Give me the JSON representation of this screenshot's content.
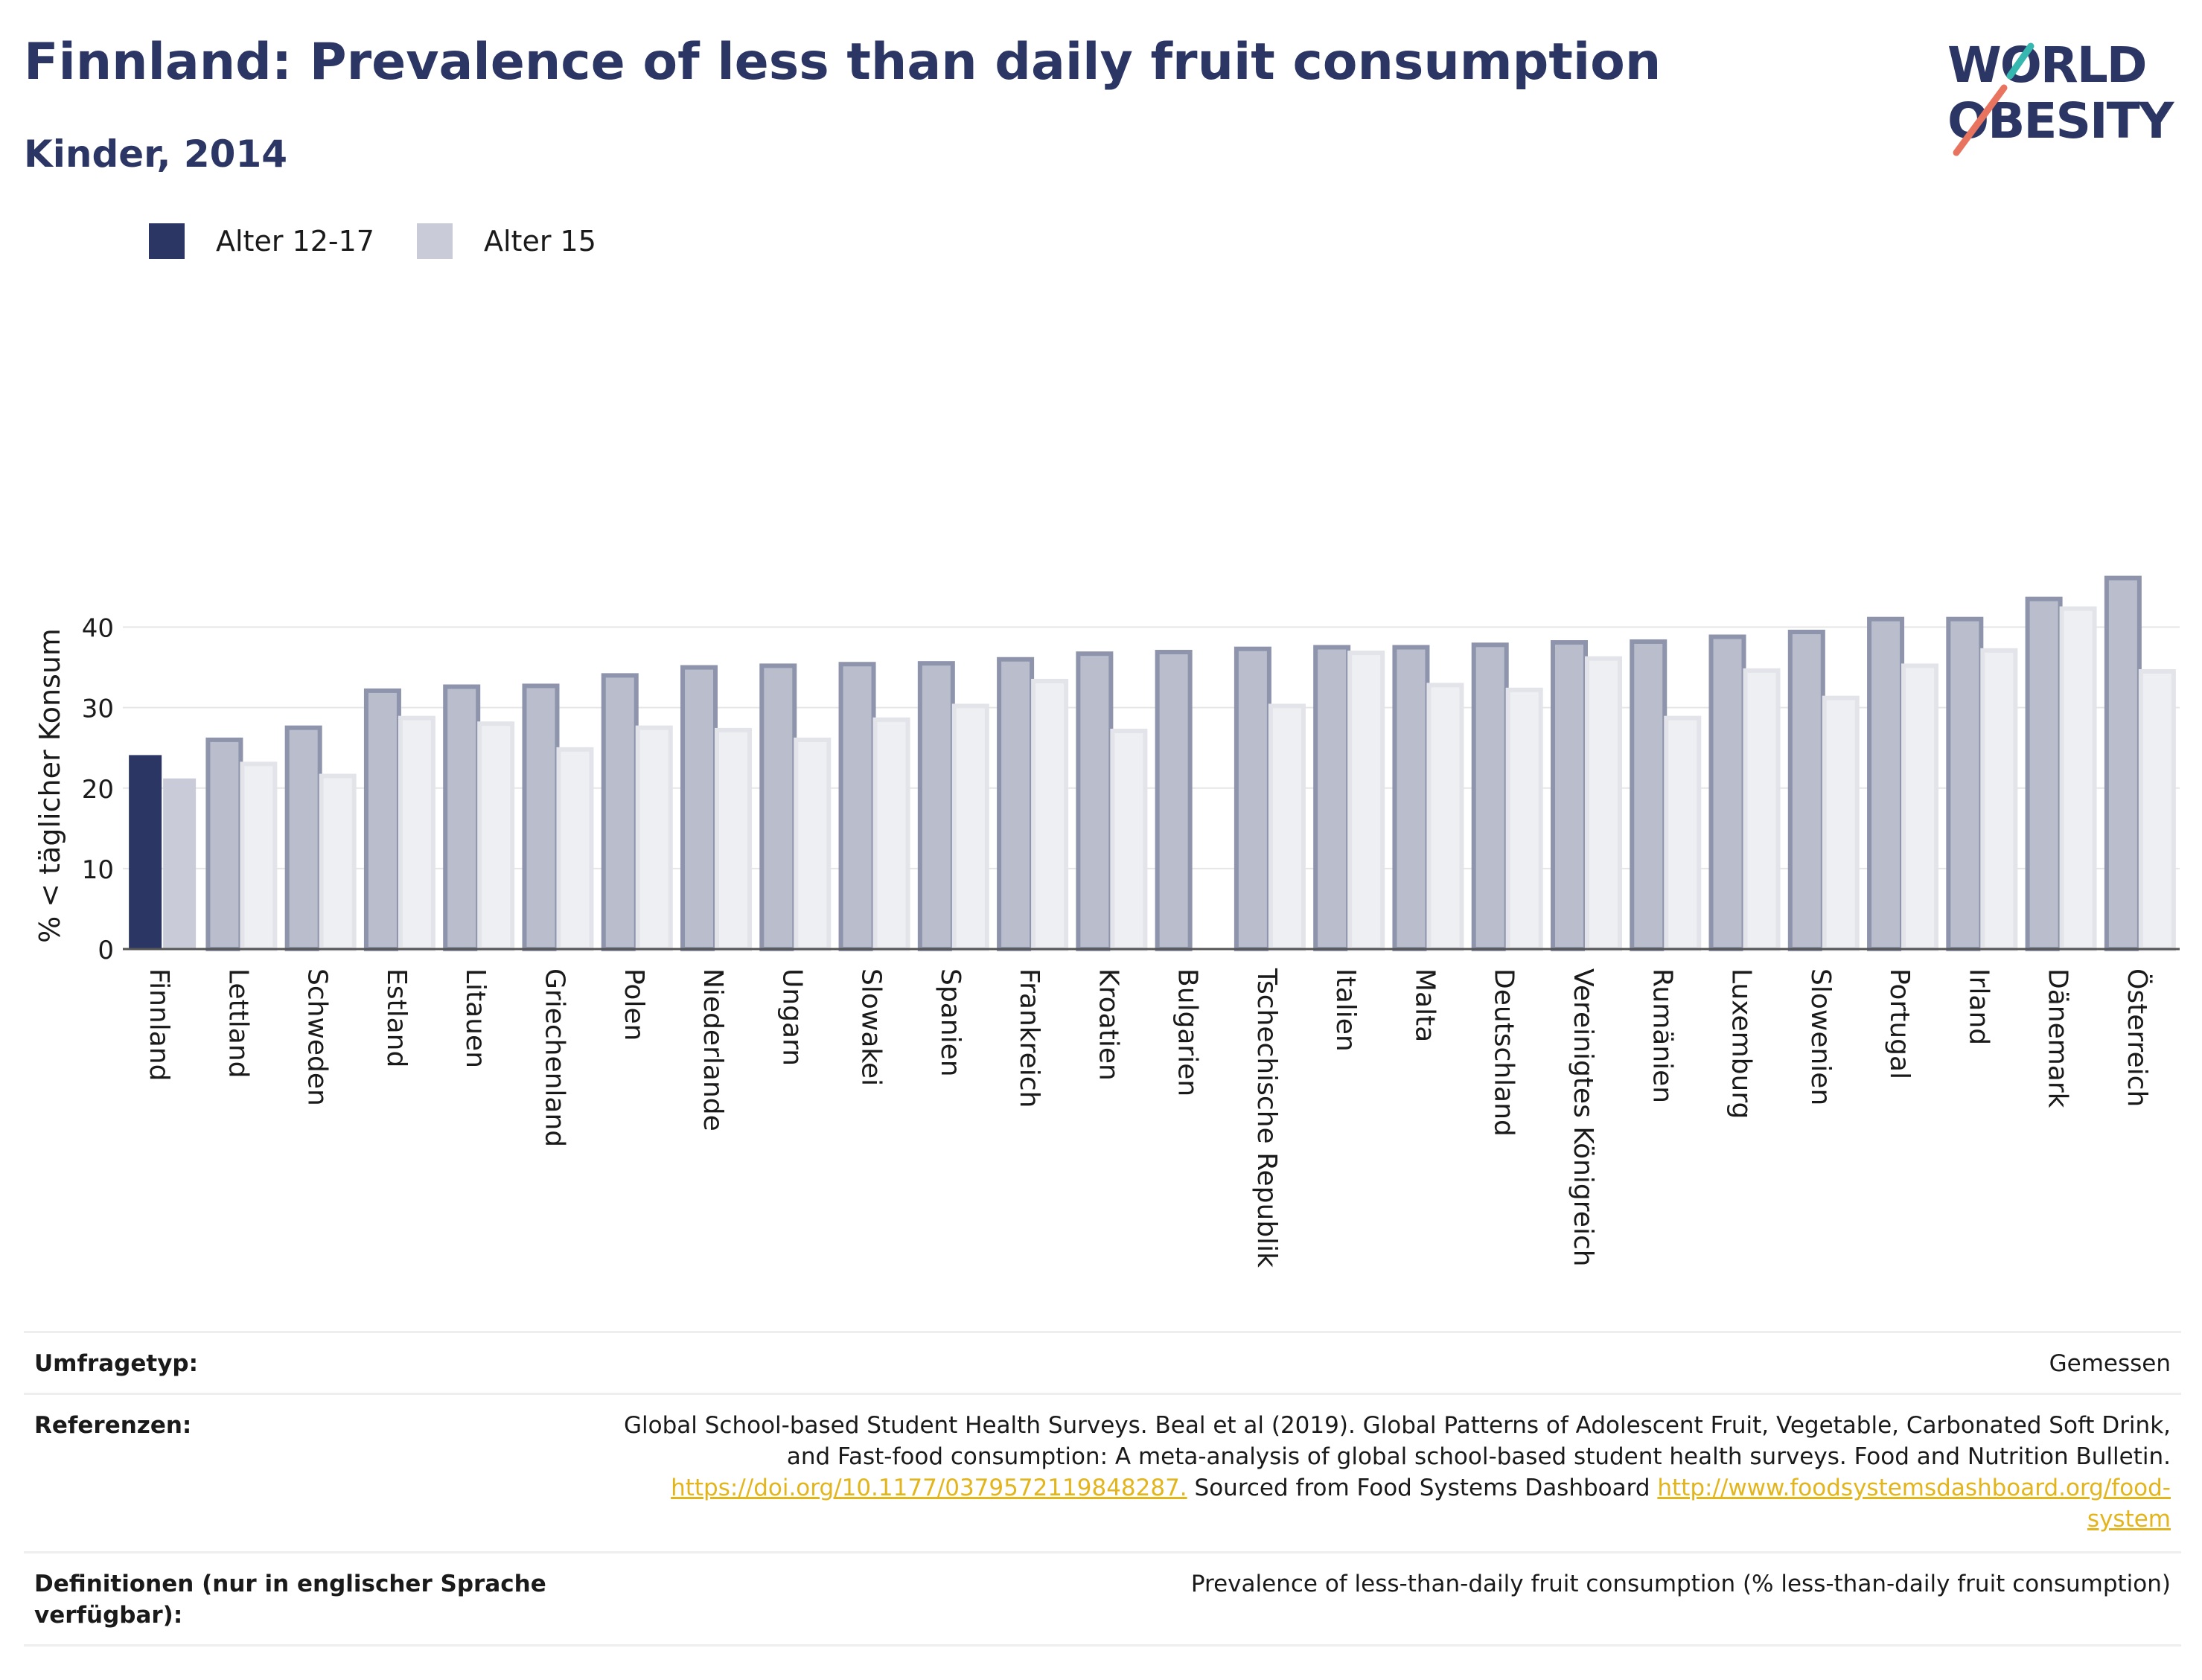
{
  "header": {
    "title": "Finnland: Prevalence of less than daily fruit consumption",
    "subtitle": "Kinder, 2014"
  },
  "logo": {
    "line1": "WORLD",
    "line2": "OBESITY"
  },
  "colors": {
    "primary": "#2b3664",
    "secondary": "#c9ccd8",
    "other_primary": "#b9bdcc",
    "other_primary_border": "#8e94ac",
    "other_secondary": "#eeeff3",
    "other_secondary_border": "#e2e4ea",
    "accent_red": "#e8745f",
    "accent_teal": "#36b8b0",
    "link": "#e3b51c"
  },
  "legend": {
    "items": [
      {
        "label": "Alter 12-17",
        "color": "#2b3664"
      },
      {
        "label": "Alter 15",
        "color": "#c9ccd8"
      }
    ]
  },
  "chart_data": {
    "type": "bar",
    "title": "Finnland: Prevalence of less than daily fruit consumption",
    "subtitle": "Kinder, 2014",
    "ylabel": "% < täglicher Konsum",
    "xlabel": "",
    "ylim": [
      0,
      48
    ],
    "yticks": [
      0,
      10,
      20,
      30,
      40
    ],
    "grid": true,
    "legend_position": "top-left",
    "highlight": "Finnland",
    "categories": [
      "Finnland",
      "Lettland",
      "Schweden",
      "Estland",
      "Litauen",
      "Griechenland",
      "Polen",
      "Niederlande",
      "Ungarn",
      "Slowakei",
      "Spanien",
      "Frankreich",
      "Kroatien",
      "Bulgarien",
      "Tschechische Republik",
      "Italien",
      "Malta",
      "Deutschland",
      "Vereinigtes Königreich",
      "Rumänien",
      "Luxemburg",
      "Slowenien",
      "Portugal",
      "Irland",
      "Dänemark",
      "Österreich"
    ],
    "series": [
      {
        "name": "Alter 12-17",
        "values": [
          24.1,
          26.0,
          27.5,
          32.1,
          32.6,
          32.7,
          34.0,
          35.0,
          35.2,
          35.4,
          35.5,
          36.0,
          36.7,
          36.9,
          37.3,
          37.5,
          37.5,
          37.8,
          38.1,
          38.2,
          38.8,
          39.4,
          41.0,
          41.0,
          43.5,
          46.1
        ]
      },
      {
        "name": "Alter 15",
        "values": [
          21.2,
          23.0,
          21.5,
          28.7,
          28.0,
          24.8,
          27.5,
          27.2,
          26.0,
          28.5,
          30.2,
          33.3,
          27.1,
          null,
          30.2,
          36.8,
          32.8,
          32.2,
          36.1,
          28.7,
          34.6,
          31.2,
          35.2,
          37.1,
          42.3,
          34.5
        ]
      }
    ]
  },
  "info": {
    "rows": [
      {
        "label": "Umfragetyp:",
        "value_lines": [
          "Gemessen"
        ]
      },
      {
        "label": "Referenzen:",
        "value_lines": [
          "Global School-based Student Health Surveys. Beal et al (2019). Global Patterns of Adolescent Fruit, Vegetable, Carbonated Soft Drink,",
          "and Fast-food consumption: A meta-analysis of global school-based student health surveys. Food and Nutrition Bulletin."
        ],
        "link1": "https://doi.org/10.1177/0379572119848287.",
        "mid_text": " Sourced from Food Systems Dashboard ",
        "link2a": "http://www.foodsystemsdashboard.org/food-",
        "link2b": "system"
      },
      {
        "label_lines": [
          "Definitionen (nur in englischer Sprache",
          "verfügbar):"
        ],
        "value_lines": [
          "Prevalence of less-than-daily fruit consumption (% less-than-daily fruit consumption)"
        ]
      }
    ]
  }
}
